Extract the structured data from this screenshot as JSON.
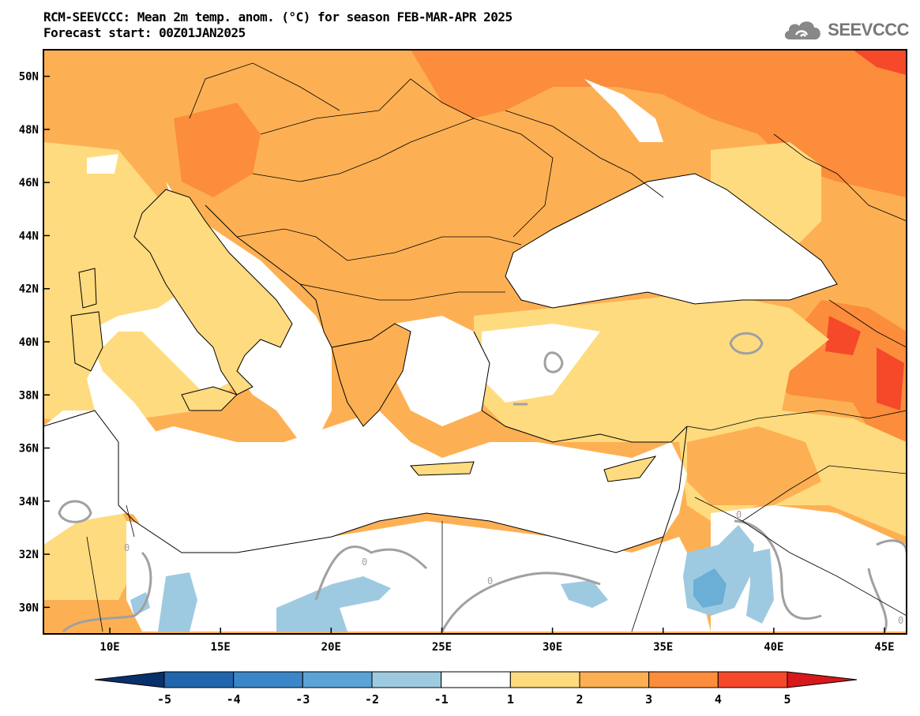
{
  "title": {
    "line1": "RCM-SEEVCCC: Mean 2m temp. anom. (°C) for season FEB-MAR-APR 2025",
    "line2": "Forecast start: 00Z01JAN2025"
  },
  "logo": {
    "text": "SEEVCCC",
    "icon": "cloud-icon"
  },
  "map": {
    "lon_range": [
      7,
      46
    ],
    "lat_range": [
      29,
      51
    ],
    "lat_ticks": [
      {
        "value": 30,
        "label": "30N"
      },
      {
        "value": 32,
        "label": "32N"
      },
      {
        "value": 34,
        "label": "34N"
      },
      {
        "value": 36,
        "label": "36N"
      },
      {
        "value": 38,
        "label": "38N"
      },
      {
        "value": 40,
        "label": "40N"
      },
      {
        "value": 42,
        "label": "42N"
      },
      {
        "value": 44,
        "label": "44N"
      },
      {
        "value": 46,
        "label": "46N"
      },
      {
        "value": 48,
        "label": "48N"
      },
      {
        "value": 50,
        "label": "50N"
      }
    ],
    "lon_ticks": [
      {
        "value": 10,
        "label": "10E"
      },
      {
        "value": 15,
        "label": "15E"
      },
      {
        "value": 20,
        "label": "20E"
      },
      {
        "value": 25,
        "label": "25E"
      },
      {
        "value": 30,
        "label": "30E"
      },
      {
        "value": 35,
        "label": "35E"
      },
      {
        "value": 40,
        "label": "40E"
      },
      {
        "value": 45,
        "label": "45E"
      }
    ],
    "zero_contour_label": "0",
    "colors": {
      "c_m5": "#08306b",
      "c_m4": "#2166ac",
      "c_m3": "#4393c3",
      "c_m2": "#6baed6",
      "c_m1": "#9ecae1",
      "c_0": "#ffffff",
      "c_1": "#ffdb7f",
      "c_2": "#fdb053",
      "c_3": "#fc8d3c",
      "c_4": "#f5492a",
      "c_5": "#d7191c",
      "sea": "#ffffff",
      "border": "#000000",
      "contour": "#a0a0a0"
    }
  },
  "colorbar": {
    "labels": [
      "-5",
      "-4",
      "-3",
      "-2",
      "-1",
      "1",
      "2",
      "3",
      "4",
      "5"
    ],
    "colors": [
      "#08306b",
      "#2166ac",
      "#3a86c8",
      "#5ba3d6",
      "#9ecae1",
      "#ffffff",
      "#ffdb7f",
      "#fdb053",
      "#fc8d3c",
      "#f5492a",
      "#d7191c"
    ]
  }
}
